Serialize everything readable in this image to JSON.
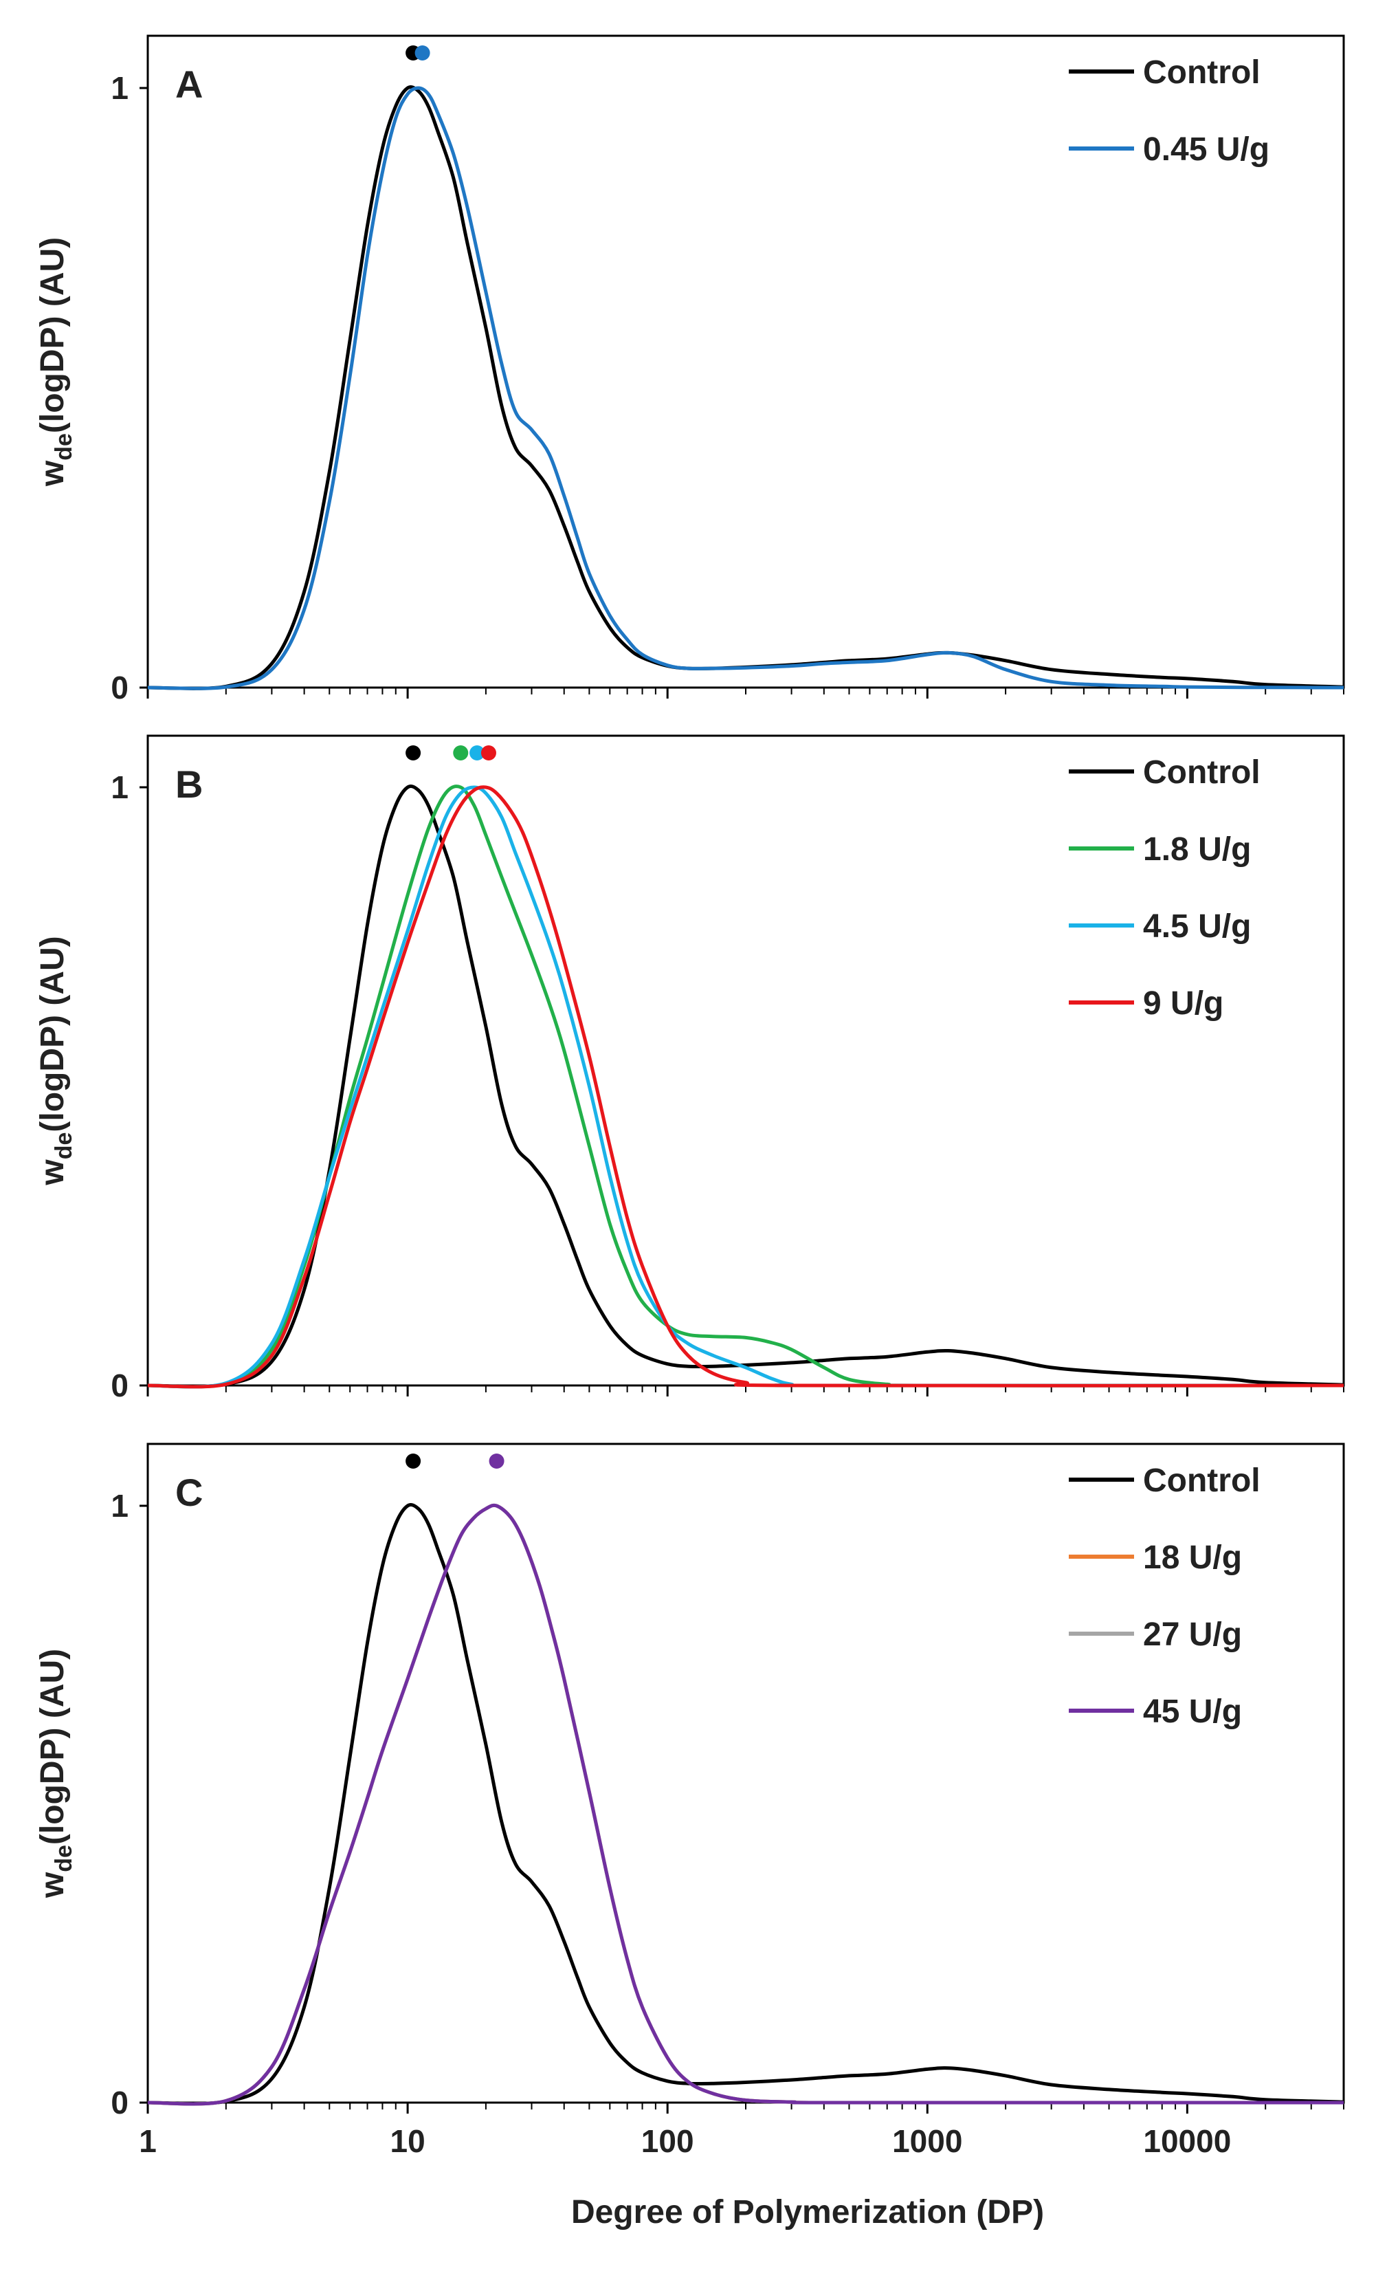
{
  "chart_data": [
    {
      "type": "line",
      "panel_label": "A",
      "xscale": "log",
      "xlim": [
        1,
        40000
      ],
      "ylim": [
        0,
        1.08
      ],
      "ylabel": {
        "main": "w",
        "sub": "de",
        "rest": "(logDP) (AU)"
      },
      "xlabel": "",
      "yticks": [
        {
          "value": 0,
          "label": "0"
        },
        {
          "value": 1,
          "label": "1"
        }
      ],
      "xticks": [],
      "legend_position": "top-right",
      "peak_markers": [
        {
          "x": 10.5,
          "color": "#000000"
        },
        {
          "x": 11.4,
          "color": "#1f77c4"
        }
      ],
      "series": [
        {
          "name": "Control",
          "color": "#000000",
          "x": [
            1,
            2,
            3,
            4,
            5,
            6,
            7,
            8,
            9,
            10,
            11,
            12,
            13,
            15,
            17,
            20,
            23,
            26,
            30,
            35,
            40,
            45,
            50,
            60,
            70,
            80,
            100,
            120,
            150,
            200,
            300,
            400,
            500,
            700,
            1000,
            1200,
            1500,
            2000,
            3000,
            5000,
            8000,
            10000,
            15000,
            20000,
            40000
          ],
          "y": [
            0,
            0.002,
            0.04,
            0.16,
            0.36,
            0.58,
            0.77,
            0.9,
            0.97,
            1.0,
            0.995,
            0.97,
            0.93,
            0.85,
            0.74,
            0.6,
            0.47,
            0.4,
            0.37,
            0.33,
            0.27,
            0.21,
            0.16,
            0.1,
            0.067,
            0.05,
            0.036,
            0.032,
            0.032,
            0.034,
            0.038,
            0.042,
            0.045,
            0.048,
            0.056,
            0.058,
            0.054,
            0.045,
            0.03,
            0.022,
            0.017,
            0.015,
            0.01,
            0.005,
            0.001
          ]
        },
        {
          "name": "0.45 U/g",
          "color": "#1f77c4",
          "x": [
            1,
            2,
            3,
            4,
            5,
            6,
            7,
            8,
            9,
            10,
            11,
            12,
            13,
            15,
            17,
            20,
            23,
            26,
            30,
            35,
            40,
            45,
            50,
            60,
            70,
            80,
            100,
            120,
            150,
            200,
            300,
            400,
            500,
            700,
            1000,
            1200,
            1500,
            2000,
            3000,
            5000,
            8000,
            10000,
            15000,
            20000,
            40000
          ],
          "y": [
            0,
            0.001,
            0.03,
            0.13,
            0.31,
            0.52,
            0.72,
            0.86,
            0.95,
            0.99,
            1.0,
            0.99,
            0.96,
            0.89,
            0.8,
            0.66,
            0.54,
            0.46,
            0.43,
            0.39,
            0.32,
            0.25,
            0.19,
            0.12,
            0.08,
            0.055,
            0.037,
            0.032,
            0.032,
            0.033,
            0.036,
            0.04,
            0.042,
            0.045,
            0.055,
            0.058,
            0.052,
            0.03,
            0.01,
            0.004,
            0.002,
            0.001,
            0.0005,
            0.0002,
            0
          ]
        }
      ]
    },
    {
      "type": "line",
      "panel_label": "B",
      "xscale": "log",
      "xlim": [
        1,
        40000
      ],
      "ylim": [
        0,
        1.08
      ],
      "ylabel": {
        "main": "w",
        "sub": "de",
        "rest": "(logDP) (AU)"
      },
      "xlabel": "",
      "yticks": [
        {
          "value": 0,
          "label": "0"
        },
        {
          "value": 1,
          "label": "1"
        }
      ],
      "xticks": [],
      "legend_position": "top-right",
      "peak_markers": [
        {
          "x": 10.5,
          "color": "#000000"
        },
        {
          "x": 16,
          "color": "#22b04a"
        },
        {
          "x": 18.5,
          "color": "#1ab2e8"
        },
        {
          "x": 20.5,
          "color": "#e8161b"
        }
      ],
      "series": [
        {
          "name": "Control",
          "color": "#000000",
          "x": [
            1,
            2,
            3,
            4,
            5,
            6,
            7,
            8,
            9,
            10,
            11,
            12,
            13,
            15,
            17,
            20,
            23,
            26,
            30,
            35,
            40,
            45,
            50,
            60,
            70,
            80,
            100,
            120,
            150,
            200,
            300,
            400,
            500,
            700,
            1000,
            1200,
            1500,
            2000,
            3000,
            5000,
            8000,
            10000,
            15000,
            20000,
            40000
          ],
          "y": [
            0,
            0.002,
            0.04,
            0.16,
            0.36,
            0.58,
            0.77,
            0.9,
            0.97,
            1.0,
            0.995,
            0.97,
            0.93,
            0.85,
            0.74,
            0.6,
            0.47,
            0.4,
            0.37,
            0.33,
            0.27,
            0.21,
            0.16,
            0.1,
            0.067,
            0.05,
            0.036,
            0.032,
            0.032,
            0.034,
            0.038,
            0.042,
            0.045,
            0.048,
            0.056,
            0.058,
            0.054,
            0.045,
            0.03,
            0.022,
            0.017,
            0.015,
            0.01,
            0.005,
            0.001
          ]
        },
        {
          "name": "1.8 U/g",
          "color": "#22b04a",
          "x": [
            1,
            2,
            3,
            4,
            5,
            6,
            7,
            8,
            10,
            12,
            14,
            16,
            18,
            20,
            23,
            26,
            30,
            35,
            40,
            50,
            60,
            70,
            80,
            100,
            120,
            150,
            200,
            250,
            300,
            400,
            500,
            700,
            1000,
            40000
          ],
          "y": [
            0,
            0.003,
            0.06,
            0.2,
            0.35,
            0.48,
            0.58,
            0.67,
            0.82,
            0.93,
            0.99,
            1.0,
            0.97,
            0.92,
            0.85,
            0.79,
            0.72,
            0.64,
            0.56,
            0.4,
            0.27,
            0.19,
            0.14,
            0.1,
            0.085,
            0.082,
            0.08,
            0.072,
            0.06,
            0.03,
            0.01,
            0.002,
            0,
            0
          ]
        },
        {
          "name": "4.5 U/g",
          "color": "#1ab2e8",
          "x": [
            1,
            2,
            3,
            4,
            5,
            6,
            7,
            8,
            10,
            12,
            14,
            16,
            18,
            20,
            23,
            26,
            30,
            35,
            40,
            50,
            60,
            70,
            80,
            100,
            120,
            150,
            200,
            250,
            300,
            400,
            40000
          ],
          "y": [
            0,
            0.004,
            0.07,
            0.21,
            0.35,
            0.46,
            0.55,
            0.63,
            0.76,
            0.87,
            0.95,
            0.99,
            1.0,
            0.99,
            0.95,
            0.89,
            0.82,
            0.74,
            0.66,
            0.5,
            0.35,
            0.24,
            0.17,
            0.1,
            0.07,
            0.05,
            0.03,
            0.012,
            0.002,
            0,
            0
          ]
        },
        {
          "name": "9 U/g",
          "color": "#e8161b",
          "x": [
            1,
            2,
            3,
            4,
            5,
            6,
            7,
            8,
            10,
            12,
            14,
            16,
            18,
            20,
            22,
            25,
            28,
            32,
            36,
            40,
            50,
            60,
            70,
            80,
            100,
            120,
            150,
            200,
            300,
            40000
          ],
          "y": [
            0,
            0.002,
            0.05,
            0.18,
            0.32,
            0.44,
            0.53,
            0.61,
            0.74,
            0.84,
            0.92,
            0.97,
            0.995,
            1.0,
            0.99,
            0.96,
            0.92,
            0.85,
            0.78,
            0.71,
            0.55,
            0.4,
            0.28,
            0.2,
            0.1,
            0.05,
            0.02,
            0.005,
            0,
            0
          ]
        }
      ]
    },
    {
      "type": "line",
      "panel_label": "C",
      "xscale": "log",
      "xlim": [
        1,
        40000
      ],
      "ylim": [
        0,
        1.08
      ],
      "ylabel": {
        "main": "w",
        "sub": "de",
        "rest": "(logDP) (AU)"
      },
      "xlabel": "Degree of Polymerization (DP)",
      "yticks": [
        {
          "value": 0,
          "label": "0"
        },
        {
          "value": 1,
          "label": "1"
        }
      ],
      "xticks": [
        {
          "value": 1,
          "label": "1"
        },
        {
          "value": 10,
          "label": "10"
        },
        {
          "value": 100,
          "label": "100"
        },
        {
          "value": 1000,
          "label": "1000"
        },
        {
          "value": 10000,
          "label": "10000"
        }
      ],
      "legend_position": "top-right",
      "peak_markers": [
        {
          "x": 10.5,
          "color": "#000000"
        },
        {
          "x": 22,
          "color": "#7030a0"
        }
      ],
      "series": [
        {
          "name": "Control",
          "color": "#000000",
          "x": [
            1,
            2,
            3,
            4,
            5,
            6,
            7,
            8,
            9,
            10,
            11,
            12,
            13,
            15,
            17,
            20,
            23,
            26,
            30,
            35,
            40,
            45,
            50,
            60,
            70,
            80,
            100,
            120,
            150,
            200,
            300,
            400,
            500,
            700,
            1000,
            1200,
            1500,
            2000,
            3000,
            5000,
            8000,
            10000,
            15000,
            20000,
            40000
          ],
          "y": [
            0,
            0.002,
            0.04,
            0.16,
            0.36,
            0.58,
            0.77,
            0.9,
            0.97,
            1.0,
            0.995,
            0.97,
            0.93,
            0.85,
            0.74,
            0.6,
            0.47,
            0.4,
            0.37,
            0.33,
            0.27,
            0.21,
            0.16,
            0.1,
            0.067,
            0.05,
            0.036,
            0.032,
            0.032,
            0.034,
            0.038,
            0.042,
            0.045,
            0.048,
            0.056,
            0.058,
            0.054,
            0.045,
            0.03,
            0.022,
            0.017,
            0.015,
            0.01,
            0.005,
            0.001
          ]
        },
        {
          "name": "18 U/g",
          "color": "#ed7d31",
          "x": [
            1,
            2,
            3,
            4,
            5,
            6,
            7,
            8,
            10,
            12,
            14,
            16,
            18,
            20,
            22,
            25,
            28,
            32,
            36,
            40,
            50,
            60,
            70,
            80,
            100,
            120,
            150,
            200,
            300,
            500,
            40000
          ],
          "y": [
            0,
            0.003,
            0.06,
            0.19,
            0.32,
            0.42,
            0.51,
            0.59,
            0.71,
            0.81,
            0.89,
            0.95,
            0.98,
            0.995,
            1.0,
            0.98,
            0.94,
            0.87,
            0.79,
            0.71,
            0.52,
            0.36,
            0.24,
            0.16,
            0.075,
            0.035,
            0.015,
            0.004,
            0.001,
            0,
            0
          ]
        },
        {
          "name": "27 U/g",
          "color": "#a5a5a5",
          "x": [
            1,
            2,
            3,
            4,
            5,
            6,
            7,
            8,
            10,
            12,
            14,
            16,
            18,
            20,
            22,
            25,
            28,
            32,
            36,
            40,
            50,
            60,
            70,
            80,
            100,
            120,
            150,
            200,
            300,
            500,
            40000
          ],
          "y": [
            0,
            0.003,
            0.06,
            0.19,
            0.32,
            0.42,
            0.51,
            0.59,
            0.71,
            0.81,
            0.89,
            0.95,
            0.98,
            0.995,
            1.0,
            0.98,
            0.94,
            0.87,
            0.79,
            0.71,
            0.52,
            0.36,
            0.24,
            0.16,
            0.075,
            0.035,
            0.015,
            0.004,
            0.001,
            0,
            0
          ]
        },
        {
          "name": "45 U/g",
          "color": "#7030a0",
          "x": [
            1,
            2,
            3,
            4,
            5,
            6,
            7,
            8,
            10,
            12,
            14,
            16,
            18,
            20,
            22,
            25,
            28,
            32,
            36,
            40,
            50,
            60,
            70,
            80,
            100,
            120,
            150,
            200,
            300,
            500,
            40000
          ],
          "y": [
            0,
            0.003,
            0.06,
            0.19,
            0.32,
            0.42,
            0.51,
            0.59,
            0.71,
            0.81,
            0.89,
            0.95,
            0.98,
            0.995,
            1.0,
            0.98,
            0.94,
            0.87,
            0.79,
            0.71,
            0.52,
            0.36,
            0.24,
            0.16,
            0.075,
            0.035,
            0.015,
            0.004,
            0.001,
            0,
            0
          ]
        }
      ]
    }
  ]
}
